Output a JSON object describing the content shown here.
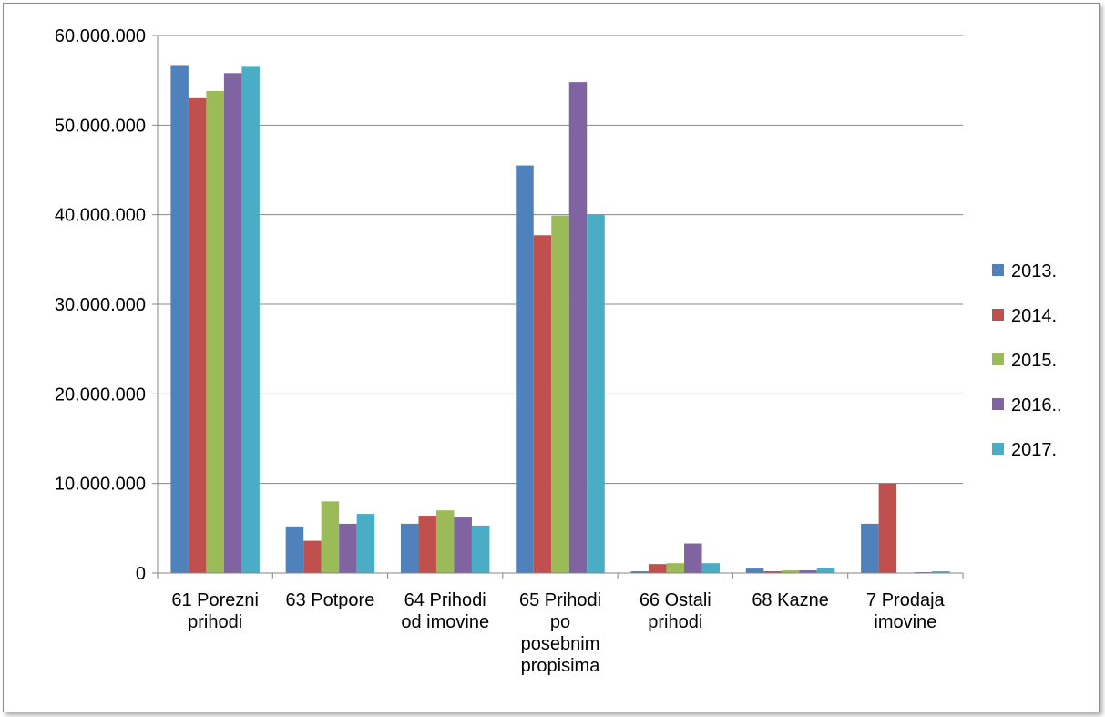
{
  "chart_data": {
    "type": "bar",
    "title": "",
    "xlabel": "",
    "ylabel": "",
    "ylim": [
      0,
      60000000
    ],
    "yticks": [
      0,
      10000000,
      20000000,
      30000000,
      40000000,
      50000000,
      60000000
    ],
    "ytick_labels": [
      "0",
      "10.000.000",
      "20.000.000",
      "30.000.000",
      "40.000.000",
      "50.000.000",
      "60.000.000"
    ],
    "grid": true,
    "legend_position": "right",
    "categories": [
      [
        "61 Porezni",
        "prihodi"
      ],
      [
        "63 Potpore"
      ],
      [
        "64 Prihodi",
        "od imovine"
      ],
      [
        "65 Prihodi",
        "po",
        "posebnim",
        "propisima"
      ],
      [
        "66 Ostali",
        "prihodi"
      ],
      [
        "68 Kazne"
      ],
      [
        "7 Prodaja",
        "imovine"
      ]
    ],
    "series": [
      {
        "name": "2013.",
        "color": "#4F81BD",
        "values": [
          56700000,
          5200000,
          5500000,
          45500000,
          200000,
          500000,
          5500000
        ]
      },
      {
        "name": "2014.",
        "color": "#C0504D",
        "values": [
          53000000,
          3600000,
          6400000,
          37700000,
          1000000,
          200000,
          10000000
        ]
      },
      {
        "name": "2015.",
        "color": "#9BBB59",
        "values": [
          53800000,
          8000000,
          7000000,
          39900000,
          1100000,
          300000,
          0
        ]
      },
      {
        "name": "2016..",
        "color": "#8064A2",
        "values": [
          55800000,
          5500000,
          6200000,
          54800000,
          3300000,
          300000,
          100000
        ]
      },
      {
        "name": "2017.",
        "color": "#4BACC6",
        "values": [
          56600000,
          6600000,
          5300000,
          40000000,
          1100000,
          600000,
          200000
        ]
      }
    ]
  }
}
